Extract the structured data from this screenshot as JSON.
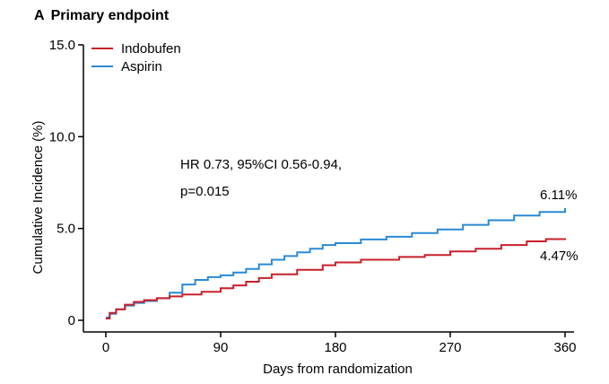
{
  "panel": {
    "letter": "A",
    "title": "Primary endpoint"
  },
  "annotation": {
    "line1": "HR 0.73, 95%CI 0.56-0.94,",
    "line2": "p=0.015"
  },
  "chart_data": {
    "type": "line",
    "title": "Primary endpoint",
    "xlabel": "Days from randomization",
    "ylabel": "Cumulative Incidence (%)",
    "xlim": [
      0,
      360
    ],
    "ylim": [
      0,
      15
    ],
    "xticks": [
      0,
      90,
      180,
      270,
      360
    ],
    "xtick_labels": [
      "0",
      "90",
      "180",
      "270",
      "360"
    ],
    "yticks": [
      0,
      5,
      10,
      15
    ],
    "ytick_labels": [
      "0",
      "5.0",
      "10.0",
      "15.0"
    ],
    "grid": false,
    "legend_position": "top-left",
    "series": [
      {
        "name": "Indobufen",
        "color": "#c8202a",
        "end_label": "4.47%",
        "points": [
          [
            0,
            0.1
          ],
          [
            3,
            0.4
          ],
          [
            8,
            0.6
          ],
          [
            15,
            0.85
          ],
          [
            22,
            1.0
          ],
          [
            30,
            1.1
          ],
          [
            40,
            1.2
          ],
          [
            50,
            1.3
          ],
          [
            60,
            1.4
          ],
          [
            75,
            1.55
          ],
          [
            90,
            1.75
          ],
          [
            100,
            1.9
          ],
          [
            110,
            2.1
          ],
          [
            120,
            2.3
          ],
          [
            130,
            2.5
          ],
          [
            150,
            2.75
          ],
          [
            170,
            3.0
          ],
          [
            180,
            3.15
          ],
          [
            200,
            3.3
          ],
          [
            230,
            3.45
          ],
          [
            250,
            3.55
          ],
          [
            270,
            3.75
          ],
          [
            290,
            3.9
          ],
          [
            310,
            4.1
          ],
          [
            330,
            4.3
          ],
          [
            345,
            4.42
          ],
          [
            360,
            4.47
          ]
        ]
      },
      {
        "name": "Aspirin",
        "color": "#2a8ad6",
        "end_label": "6.11%",
        "points": [
          [
            0,
            0.15
          ],
          [
            3,
            0.35
          ],
          [
            8,
            0.6
          ],
          [
            15,
            0.8
          ],
          [
            22,
            0.95
          ],
          [
            30,
            1.05
          ],
          [
            40,
            1.2
          ],
          [
            50,
            1.5
          ],
          [
            60,
            1.95
          ],
          [
            70,
            2.2
          ],
          [
            80,
            2.35
          ],
          [
            90,
            2.45
          ],
          [
            100,
            2.6
          ],
          [
            110,
            2.8
          ],
          [
            120,
            3.05
          ],
          [
            130,
            3.3
          ],
          [
            140,
            3.5
          ],
          [
            150,
            3.7
          ],
          [
            160,
            3.9
          ],
          [
            170,
            4.1
          ],
          [
            180,
            4.2
          ],
          [
            200,
            4.4
          ],
          [
            220,
            4.55
          ],
          [
            240,
            4.75
          ],
          [
            260,
            4.95
          ],
          [
            280,
            5.2
          ],
          [
            300,
            5.45
          ],
          [
            320,
            5.7
          ],
          [
            340,
            5.9
          ],
          [
            360,
            6.11
          ]
        ]
      }
    ]
  }
}
